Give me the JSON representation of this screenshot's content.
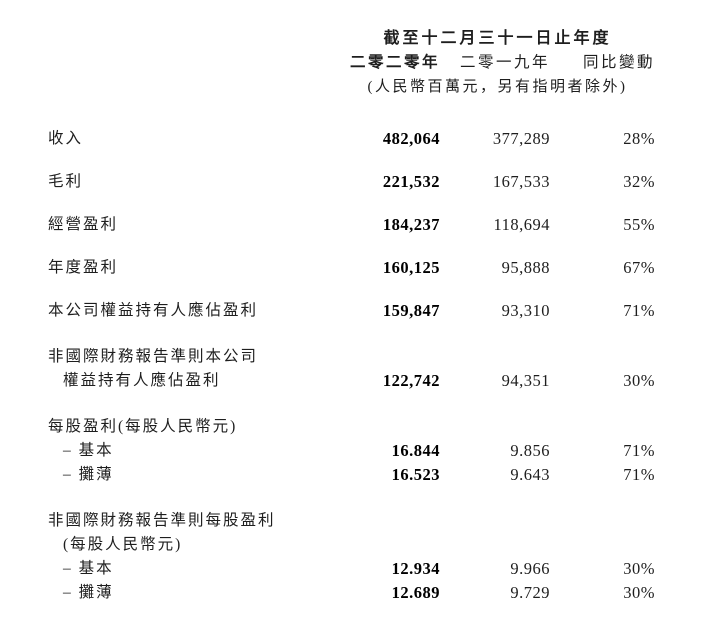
{
  "table": {
    "period_header": "截至十二月三十一日止年度",
    "columns": [
      {
        "key": "y2020",
        "label": "二零二零年",
        "bold": true
      },
      {
        "key": "y2019",
        "label": "二零一九年",
        "bold": false
      },
      {
        "key": "change",
        "label": "同比變動",
        "bold": false
      }
    ],
    "unit_note": "(人民幣百萬元，另有指明者除外)",
    "rows": [
      {
        "label": "收入",
        "type": "primary",
        "indent": 0,
        "y2020": "482,064",
        "y2019": "377,289",
        "change": "28%"
      },
      {
        "label": "毛利",
        "type": "primary",
        "indent": 0,
        "y2020": "221,532",
        "y2019": "167,533",
        "change": "32%"
      },
      {
        "label": "經營盈利",
        "type": "primary",
        "indent": 0,
        "y2020": "184,237",
        "y2019": "118,694",
        "change": "55%"
      },
      {
        "label": "年度盈利",
        "type": "primary",
        "indent": 0,
        "y2020": "160,125",
        "y2019": "95,888",
        "change": "67%"
      },
      {
        "label": "本公司權益持有人應佔盈利",
        "type": "primary",
        "indent": 0,
        "y2020": "159,847",
        "y2019": "93,310",
        "change": "71%"
      },
      {
        "label": "非國際財務報告準則本公司",
        "type": "section",
        "indent": 0
      },
      {
        "label": "權益持有人應佔盈利",
        "type": "continuation",
        "indent": 1,
        "y2020": "122,742",
        "y2019": "94,351",
        "change": "30%"
      },
      {
        "label": "每股盈利(每股人民幣元)",
        "type": "section",
        "indent": 0
      },
      {
        "label": "– 基本",
        "type": "continuation",
        "indent": 1,
        "y2020": "16.844",
        "y2019": "9.856",
        "change": "71%"
      },
      {
        "label": "– 攤薄",
        "type": "continuation",
        "indent": 1,
        "y2020": "16.523",
        "y2019": "9.643",
        "change": "71%"
      },
      {
        "label": "非國際財務報告準則每股盈利",
        "type": "section",
        "indent": 0
      },
      {
        "label": "(每股人民幣元)",
        "type": "continuation",
        "indent": 1
      },
      {
        "label": "– 基本",
        "type": "continuation",
        "indent": 1,
        "y2020": "12.934",
        "y2019": "9.966",
        "change": "30%"
      },
      {
        "label": "– 攤薄",
        "type": "continuation",
        "indent": 1,
        "y2020": "12.689",
        "y2019": "9.729",
        "change": "30%"
      }
    ]
  }
}
